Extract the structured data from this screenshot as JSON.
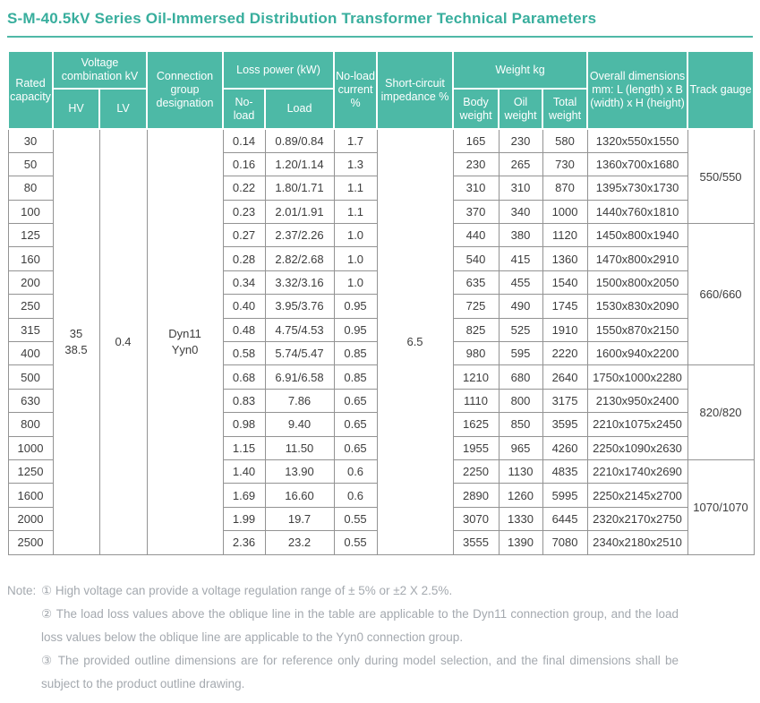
{
  "title": "S-M-40.5kV Series Oil-Immersed Distribution Transformer Technical Parameters",
  "colors": {
    "accent_teal": "#4db9a6",
    "title_teal": "#38ae9d",
    "body_text": "#3d3d3d",
    "table_border": "#939393",
    "note_text": "#a4a9af"
  },
  "table": {
    "headers": {
      "rated_capacity": "Rated capacity",
      "voltage_combination": "Voltage combination kV",
      "hv": "HV",
      "lv": "LV",
      "connection_group": "Connection group designation",
      "loss_power": "Loss power (kW)",
      "no_load": "No-load",
      "load": "Load",
      "no_load_current": "No-load current %",
      "short_circuit": "Short-circuit impedance %",
      "weight": "Weight kg",
      "body_weight": "Body weight",
      "oil_weight": "Oil weight",
      "total_weight": "Total weight",
      "overall_dimensions": "Overall dimensions mm: L (length) x B (width) x H (height)",
      "track_gauge": "Track gauge"
    },
    "shared": {
      "hv": "35\n38.5",
      "lv": "0.4",
      "connection": "Dyn11\nYyn0",
      "impedance": "6.5"
    },
    "rows": [
      {
        "capacity": "30",
        "no_load": "0.14",
        "load": "0.89/0.84",
        "current": "1.7",
        "body": "165",
        "oil": "230",
        "total": "580",
        "dims": "1320x550x1550"
      },
      {
        "capacity": "50",
        "no_load": "0.16",
        "load": "1.20/1.14",
        "current": "1.3",
        "body": "230",
        "oil": "265",
        "total": "730",
        "dims": "1360x700x1680"
      },
      {
        "capacity": "80",
        "no_load": "0.22",
        "load": "1.80/1.71",
        "current": "1.1",
        "body": "310",
        "oil": "310",
        "total": "870",
        "dims": "1395x730x1730"
      },
      {
        "capacity": "100",
        "no_load": "0.23",
        "load": "2.01/1.91",
        "current": "1.1",
        "body": "370",
        "oil": "340",
        "total": "1000",
        "dims": "1440x760x1810"
      },
      {
        "capacity": "125",
        "no_load": "0.27",
        "load": "2.37/2.26",
        "current": "1.0",
        "body": "440",
        "oil": "380",
        "total": "1120",
        "dims": "1450x800x1940"
      },
      {
        "capacity": "160",
        "no_load": "0.28",
        "load": "2.82/2.68",
        "current": "1.0",
        "body": "540",
        "oil": "415",
        "total": "1360",
        "dims": "1470x800x2910"
      },
      {
        "capacity": "200",
        "no_load": "0.34",
        "load": "3.32/3.16",
        "current": "1.0",
        "body": "635",
        "oil": "455",
        "total": "1540",
        "dims": "1500x800x2050"
      },
      {
        "capacity": "250",
        "no_load": "0.40",
        "load": "3.95/3.76",
        "current": "0.95",
        "body": "725",
        "oil": "490",
        "total": "1745",
        "dims": "1530x830x2090"
      },
      {
        "capacity": "315",
        "no_load": "0.48",
        "load": "4.75/4.53",
        "current": "0.95",
        "body": "825",
        "oil": "525",
        "total": "1910",
        "dims": "1550x870x2150"
      },
      {
        "capacity": "400",
        "no_load": "0.58",
        "load": "5.74/5.47",
        "current": "0.85",
        "body": "980",
        "oil": "595",
        "total": "2220",
        "dims": "1600x940x2200"
      },
      {
        "capacity": "500",
        "no_load": "0.68",
        "load": "6.91/6.58",
        "current": "0.85",
        "body": "1210",
        "oil": "680",
        "total": "2640",
        "dims": "1750x1000x2280"
      },
      {
        "capacity": "630",
        "no_load": "0.83",
        "load": "7.86",
        "current": "0.65",
        "body": "1110",
        "oil": "800",
        "total": "3175",
        "dims": "2130x950x2400"
      },
      {
        "capacity": "800",
        "no_load": "0.98",
        "load": "9.40",
        "current": "0.65",
        "body": "1625",
        "oil": "850",
        "total": "3595",
        "dims": "2210x1075x2450"
      },
      {
        "capacity": "1000",
        "no_load": "1.15",
        "load": "11.50",
        "current": "0.65",
        "body": "1955",
        "oil": "965",
        "total": "4260",
        "dims": "2250x1090x2630"
      },
      {
        "capacity": "1250",
        "no_load": "1.40",
        "load": "13.90",
        "current": "0.6",
        "body": "2250",
        "oil": "1130",
        "total": "4835",
        "dims": "2210x1740x2690"
      },
      {
        "capacity": "1600",
        "no_load": "1.69",
        "load": "16.60",
        "current": "0.6",
        "body": "2890",
        "oil": "1260",
        "total": "5995",
        "dims": "2250x2145x2700"
      },
      {
        "capacity": "2000",
        "no_load": "1.99",
        "load": "19.7",
        "current": "0.55",
        "body": "3070",
        "oil": "1330",
        "total": "6445",
        "dims": "2320x2170x2750"
      },
      {
        "capacity": "2500",
        "no_load": "2.36",
        "load": "23.2",
        "current": "0.55",
        "body": "3555",
        "oil": "1390",
        "total": "7080",
        "dims": "2340x2180x2510"
      }
    ],
    "track_groups": [
      {
        "label": "550/550",
        "rows": 4
      },
      {
        "label": "660/660",
        "rows": 6
      },
      {
        "label": "820/820",
        "rows": 4
      },
      {
        "label": "1070/1070",
        "rows": 4
      }
    ]
  },
  "notes": {
    "label": "Note:",
    "items": [
      "① High voltage can provide a voltage regulation range of ± 5% or ±2 X 2.5%.",
      "② The load loss values above the oblique line in the table are applicable to the Dyn11 connection group, and the load loss values below the oblique line are applicable to the Yyn0 connection group.",
      "③ The provided outline dimensions are for reference only during model selection, and the final dimensions shall be subject to the product outline drawing."
    ]
  }
}
